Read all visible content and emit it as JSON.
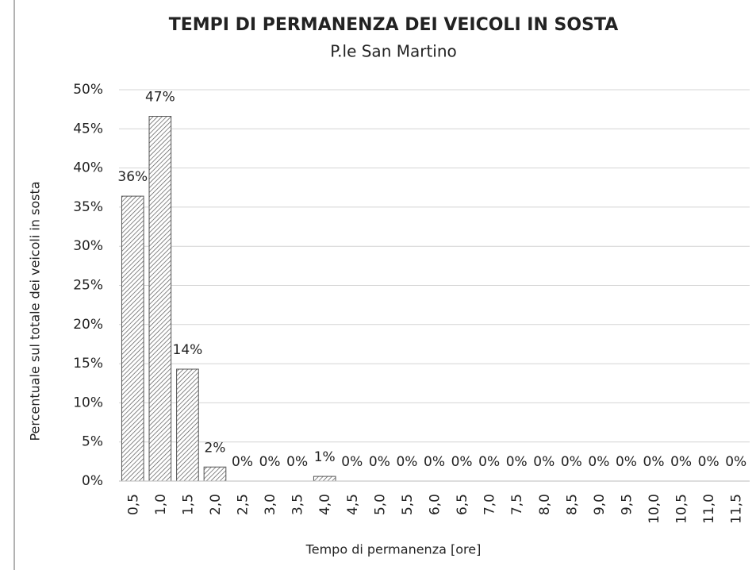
{
  "chart_data": {
    "type": "bar",
    "title": "TEMPI DI PERMANENZA DEI VEICOLI IN SOSTA",
    "subtitle": "P.le San Martino",
    "x_label": "Tempo di permanenza [ore]",
    "y_label": "Percentuale sul totale dei veicoli in sosta",
    "categories": [
      "0,5",
      "1,0",
      "1,5",
      "2,0",
      "2,5",
      "3,0",
      "3,5",
      "4,0",
      "4,5",
      "5,0",
      "5,5",
      "6,0",
      "6,5",
      "7,0",
      "7,5",
      "8,0",
      "8,5",
      "9,0",
      "9,5",
      "10,0",
      "10,5",
      "11,0",
      "11,5"
    ],
    "values": [
      36.4,
      46.6,
      14.3,
      1.8,
      0,
      0,
      0,
      0.6,
      0,
      0,
      0,
      0,
      0,
      0,
      0,
      0,
      0,
      0,
      0,
      0,
      0,
      0,
      0
    ],
    "value_labels": [
      "36%",
      "47%",
      "14%",
      "2%",
      "0%",
      "0%",
      "0%",
      "1%",
      "0%",
      "0%",
      "0%",
      "0%",
      "0%",
      "0%",
      "0%",
      "0%",
      "0%",
      "0%",
      "0%",
      "0%",
      "0%",
      "0%",
      "0%"
    ],
    "color": "#555555",
    "ylim": [
      0,
      50
    ],
    "yticks": [
      {
        "value": 0,
        "label": "0%"
      },
      {
        "value": 5,
        "label": "5%"
      },
      {
        "value": 10,
        "label": "10%"
      },
      {
        "value": 15,
        "label": "15%"
      },
      {
        "value": 20,
        "label": "20%"
      },
      {
        "value": 25,
        "label": "25%"
      },
      {
        "value": 30,
        "label": "30%"
      },
      {
        "value": 35,
        "label": "35%"
      },
      {
        "value": 40,
        "label": "40%"
      },
      {
        "value": 45,
        "label": "45%"
      },
      {
        "value": 50,
        "label": "50%"
      }
    ],
    "grid": true
  }
}
